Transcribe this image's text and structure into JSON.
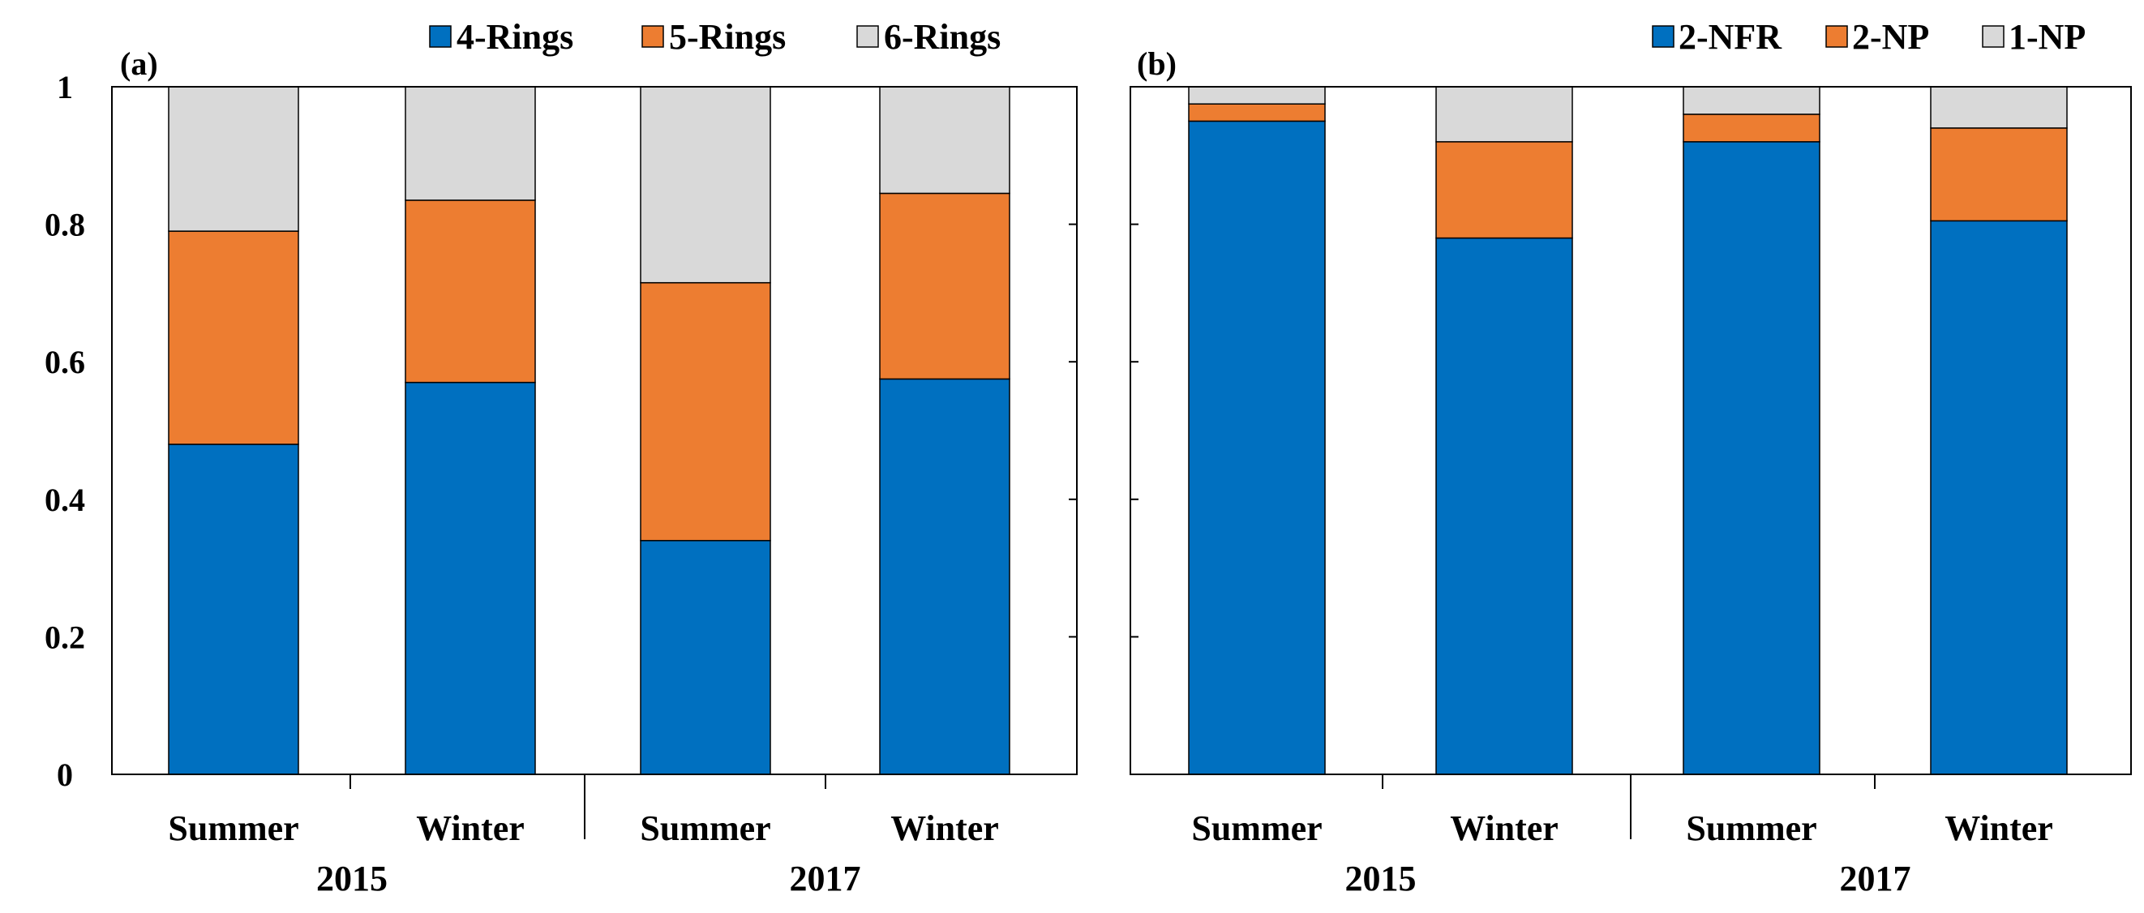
{
  "chart_data": [
    {
      "type": "bar",
      "stacked": true,
      "panel_label": "(a)",
      "categories": [
        "Summer",
        "Winter",
        "Summer",
        "Winter"
      ],
      "groups": [
        {
          "label": "2015",
          "categories": [
            0,
            1
          ]
        },
        {
          "label": "2017",
          "categories": [
            2,
            3
          ]
        }
      ],
      "series": [
        {
          "name": "4-Rings",
          "color": "#0070C0",
          "values": [
            0.48,
            0.57,
            0.34,
            0.575
          ]
        },
        {
          "name": "5-Rings",
          "color": "#ED7D31",
          "values": [
            0.31,
            0.265,
            0.375,
            0.27
          ]
        },
        {
          "name": "6-Rings",
          "color": "#D9D9D9",
          "values": [
            0.21,
            0.165,
            0.285,
            0.155
          ]
        }
      ],
      "ylim": [
        0,
        1
      ],
      "yticks": [
        "0",
        "0.2",
        "0.4",
        "0.6",
        "0.8",
        "1"
      ],
      "ytick_values": [
        0,
        0.2,
        0.4,
        0.6,
        0.8,
        1
      ],
      "legend": "top"
    },
    {
      "type": "bar",
      "stacked": true,
      "panel_label": "(b)",
      "categories": [
        "Summer",
        "Winter",
        "Summer",
        "Winter"
      ],
      "groups": [
        {
          "label": "2015",
          "categories": [
            0,
            1
          ]
        },
        {
          "label": "2017",
          "categories": [
            2,
            3
          ]
        }
      ],
      "series": [
        {
          "name": "2-NFR",
          "color": "#0070C0",
          "values": [
            0.95,
            0.78,
            0.92,
            0.805
          ]
        },
        {
          "name": "2-NP",
          "color": "#ED7D31",
          "values": [
            0.025,
            0.14,
            0.04,
            0.135
          ]
        },
        {
          "name": "1-NP",
          "color": "#D9D9D9",
          "values": [
            0.025,
            0.08,
            0.04,
            0.06
          ]
        }
      ],
      "ylim": [
        0,
        1
      ],
      "yticks": [],
      "ytick_values": [
        0,
        0.2,
        0.4,
        0.6,
        0.8,
        1
      ],
      "legend": "top-right"
    }
  ]
}
